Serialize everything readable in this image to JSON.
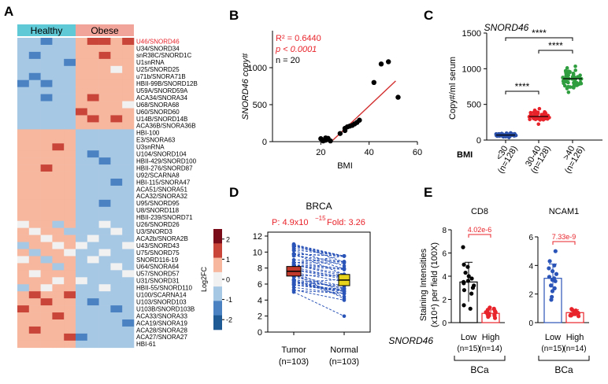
{
  "panel_letters": {
    "a": "A",
    "b": "B",
    "c": "C",
    "d": "D",
    "e": "E"
  },
  "colors": {
    "healthy_bar": "#5fc9d6",
    "obese_bar": "#f0a49a",
    "highlight": "#e8232a",
    "heat_scale": [
      "#1f5a95",
      "#4a82c2",
      "#a6c8e4",
      "#f1f1f1",
      "#f6b79e",
      "#c9453a",
      "#7a0c1a"
    ],
    "tumor": "#c0392b",
    "normal": "#e6d31e",
    "dots_blue": "#2a4fa8",
    "dots_red": "#e8232a",
    "dots_green": "#2f9e3f"
  },
  "chart_data": [
    {
      "panel": "A",
      "type": "heatmap",
      "groups": [
        {
          "name": "Healthy",
          "n_columns": 5
        },
        {
          "name": "Obese",
          "n_columns": 5
        }
      ],
      "rows": [
        "U46/SNORD46",
        "U34/SNORD34",
        "snR38C/SNORD1C",
        "U1snRNA",
        "U25/SNORD25",
        "u71b/SNORA71B",
        "HBII-99B/SNORD12B",
        "U59A/SNORD59A",
        "ACA34/SNORA34",
        "U68/SNORA68",
        "U60/SNORD60",
        "U14B/SNORD14B",
        "ACA36B/SNORA36B",
        "HBI-100",
        "E3/SNORA63",
        "U3snRNA",
        "U104/SNORD104",
        "HBII-429/SNORD100",
        "HBII-276/SNORD87",
        "U92/SCARNA8",
        "HBI-115/SNORA47",
        "ACA51/SNORA51",
        "ACA32/SNORA32",
        "U95/SNORD95",
        "U8/SNORD118",
        "HBII-239/SNORD71",
        "U26/SNORD26",
        "U3/SNORD3",
        "ACA2b/SNORA2B",
        "U43/SNORD43",
        "U75/SNORD75",
        "SNORD116-19",
        "U64/SNORA64",
        "U57/SNORD57",
        "U31/SNORD31",
        "HBII-55/SNORD110",
        "U100/SCARNA14",
        "U103/SNORD103",
        "U103B/SNORD103B",
        "ACA33/SNORA33",
        "ACA19/SNORA19",
        "ACA28/SNORA28",
        "ACA27/SNORA27",
        "HBI-61"
      ],
      "highlight_row": "U46/SNORD46",
      "values": [
        [
          -1,
          -1,
          -2,
          -1,
          -1,
          1,
          2,
          2,
          1,
          2
        ],
        [
          -1,
          -1,
          -1,
          -1,
          -1,
          1,
          1,
          1,
          1,
          1
        ],
        [
          -1,
          -2,
          -1,
          -1,
          -1,
          1,
          1,
          2,
          1,
          1
        ],
        [
          -1,
          -1,
          -1,
          -1,
          -2,
          1,
          1,
          1,
          1,
          1
        ],
        [
          -1,
          -1,
          -1,
          -1,
          -1,
          1,
          1,
          1,
          0,
          1
        ],
        [
          -1,
          -2,
          -1,
          -1,
          -1,
          1,
          1,
          1,
          1,
          1
        ],
        [
          -2,
          -1,
          -2,
          -1,
          -1,
          1,
          1,
          1,
          1,
          1
        ],
        [
          -1,
          -1,
          -1,
          -1,
          -1,
          1,
          1,
          1,
          1,
          1
        ],
        [
          -1,
          -1,
          -2,
          -1,
          -1,
          1,
          2,
          1,
          1,
          1
        ],
        [
          -1,
          -1,
          -1,
          -1,
          -1,
          1,
          1,
          1,
          1,
          0
        ],
        [
          -1,
          -1,
          -1,
          -1,
          -1,
          2,
          1,
          1,
          1,
          1
        ],
        [
          -1,
          -1,
          -1,
          -1,
          -1,
          1,
          2,
          1,
          2,
          1
        ],
        [
          -1,
          -1,
          -1,
          -1,
          -1,
          1,
          1,
          1,
          1,
          1
        ],
        [
          1,
          1,
          1,
          1,
          1,
          -1,
          -1,
          -1,
          -1,
          -1
        ],
        [
          1,
          1,
          1,
          1,
          1,
          -1,
          -1,
          -1,
          -1,
          -1
        ],
        [
          1,
          1,
          1,
          2,
          1,
          -1,
          -1,
          -1,
          -1,
          -1
        ],
        [
          1,
          1,
          1,
          1,
          1,
          -1,
          -2,
          -1,
          -1,
          -1
        ],
        [
          1,
          1,
          1,
          1,
          1,
          -1,
          -1,
          -2,
          -1,
          -1
        ],
        [
          1,
          1,
          2,
          1,
          1,
          -1,
          -1,
          -1,
          -1,
          -1
        ],
        [
          1,
          1,
          1,
          1,
          1,
          -1,
          -1,
          -1,
          -1,
          -1
        ],
        [
          1,
          1,
          1,
          1,
          1,
          -1,
          -1,
          -1,
          -2,
          -1
        ],
        [
          1,
          1,
          1,
          1,
          1,
          -1,
          -1,
          -1,
          -1,
          -1
        ],
        [
          1,
          1,
          1,
          1,
          1,
          -1,
          -1,
          -1,
          -1,
          -1
        ],
        [
          1,
          1,
          1,
          1,
          1,
          -1,
          -1,
          -2,
          -1,
          -1
        ],
        [
          1,
          1,
          1,
          1,
          1,
          -1,
          -1,
          -1,
          -1,
          -1
        ],
        [
          1,
          1,
          1,
          1,
          1,
          -1,
          -1,
          -1,
          -1,
          -1
        ],
        [
          0,
          1,
          1,
          -1,
          1,
          -1,
          -1,
          0,
          -1,
          -1
        ],
        [
          1,
          0,
          1,
          1,
          -1,
          -1,
          -1,
          -1,
          0,
          -1
        ],
        [
          1,
          1,
          0,
          1,
          1,
          -1,
          0,
          -1,
          -1,
          -1
        ],
        [
          -1,
          1,
          1,
          0,
          1,
          0,
          -1,
          -1,
          -1,
          0
        ],
        [
          1,
          -1,
          1,
          1,
          0,
          -1,
          -1,
          0,
          -1,
          -1
        ],
        [
          0,
          1,
          -1,
          1,
          1,
          -1,
          0,
          -1,
          -1,
          -1
        ],
        [
          1,
          1,
          1,
          -1,
          1,
          -1,
          -1,
          -1,
          0,
          -1
        ],
        [
          1,
          0,
          1,
          1,
          1,
          -1,
          -1,
          -1,
          -1,
          0
        ],
        [
          1,
          1,
          1,
          0,
          1,
          0,
          -1,
          -1,
          -1,
          -1
        ],
        [
          -1,
          1,
          0,
          1,
          1,
          -1,
          -1,
          0,
          -1,
          -1
        ],
        [
          1,
          2,
          1,
          1,
          2,
          -1,
          -1,
          -1,
          -1,
          -1
        ],
        [
          1,
          1,
          2,
          1,
          1,
          -1,
          -2,
          -1,
          -1,
          -1
        ],
        [
          2,
          1,
          1,
          1,
          1,
          -1,
          -1,
          -1,
          -2,
          -1
        ],
        [
          1,
          1,
          1,
          2,
          1,
          -1,
          -1,
          -1,
          -1,
          -1
        ],
        [
          1,
          1,
          1,
          1,
          1,
          -1,
          -1,
          -1,
          -1,
          -2
        ],
        [
          1,
          2,
          1,
          1,
          1,
          -1,
          -1,
          -1,
          -1,
          -1
        ],
        [
          1,
          1,
          1,
          1,
          2,
          -2,
          -1,
          -1,
          -1,
          -1
        ],
        [
          1,
          1,
          1,
          1,
          1,
          -1,
          -1,
          -1,
          -1,
          -1
        ]
      ],
      "colorbar": {
        "label": "Log2FC",
        "ticks": [
          "2",
          "1",
          "0",
          "-1",
          "-2"
        ],
        "range": [
          -2.5,
          2.5
        ]
      }
    },
    {
      "panel": "B",
      "type": "scatter",
      "x": [
        20,
        21,
        22,
        23,
        22,
        24,
        23,
        28,
        30,
        31,
        32,
        30,
        33,
        34,
        35,
        36,
        42,
        45,
        48,
        52
      ],
      "y": [
        40,
        10,
        50,
        30,
        20,
        10,
        45,
        110,
        150,
        200,
        210,
        180,
        220,
        240,
        260,
        290,
        800,
        1050,
        1080,
        600
      ],
      "fit_line": {
        "x": [
          25,
          51
        ],
        "y": [
          20,
          820
        ]
      },
      "xlabel": "BMI",
      "ylabel": "SNORD46 copy#",
      "xticks": [
        "20",
        "40",
        "60"
      ],
      "yticks": [
        "0",
        "500",
        "1000"
      ],
      "xlim": [
        0,
        60
      ],
      "ylim": [
        0,
        1500
      ],
      "stats": {
        "r2": "R² = 0.6440",
        "p": "p < 0.0001",
        "n": "n = 20"
      }
    },
    {
      "panel": "C",
      "type": "scatter",
      "title": "SNORD46",
      "categories": [
        "<30",
        "30-40",
        ">40"
      ],
      "group_n": [
        "(n=128)",
        "(n=128)",
        "(n=126)"
      ],
      "means": [
        70,
        330,
        860
      ],
      "spreads": [
        40,
        110,
        220
      ],
      "ylabel": "Copy#/ml serum",
      "yticks": [
        "0",
        "500",
        "1000",
        "1500"
      ],
      "ylim": [
        0,
        1500
      ],
      "xlabel": "BMI",
      "sig_labels": [
        "****",
        "****",
        "****"
      ]
    },
    {
      "panel": "D",
      "type": "line",
      "title": "BRCA",
      "stat_text": {
        "p_prefix": "P: 4.9x10",
        "p_exp": "−15",
        "fold": "Fold: 3.26"
      },
      "categories": [
        "Tumor",
        "Normal"
      ],
      "group_n": [
        "(n=103)",
        "(n=103)"
      ],
      "yticks": [
        "0",
        "2",
        "4",
        "6",
        "8",
        "10",
        "12"
      ],
      "ylim": [
        0,
        12
      ],
      "box_medians": [
        7.6,
        6.5
      ],
      "tumor_range": [
        5.0,
        11.0
      ],
      "normal_range": [
        0.5,
        9.5
      ]
    },
    {
      "panel": "E",
      "type": "bar",
      "ylabel_main": "Staining Intensities",
      "ylabel_sub": "(x10⁴) per field (100X)",
      "row_label": "SNORD46",
      "subplots": [
        {
          "title": "CD8",
          "categories": [
            "Low",
            "High"
          ],
          "group_n": [
            "(n=15)",
            "(n=14)"
          ],
          "values": [
            3.5,
            0.8
          ],
          "errors": [
            1.7,
            0.3
          ],
          "yticks": [
            "0",
            "2",
            "4",
            "6",
            "8"
          ],
          "ylim": [
            0,
            8
          ],
          "pvalue": "4.02e-6",
          "group": "BCa",
          "points_low": [
            6.5,
            5.0,
            4.8,
            4.3,
            4.0,
            3.8,
            3.6,
            3.5,
            3.4,
            3.2,
            3.0,
            2.8,
            2.5,
            1.5,
            1.2
          ],
          "points_high": [
            1.3,
            1.2,
            1.1,
            1.0,
            0.9,
            0.9,
            0.8,
            0.8,
            0.7,
            0.7,
            0.6,
            0.6,
            0.5,
            0.4
          ]
        },
        {
          "title": "NCAM1",
          "categories": [
            "Low",
            "High"
          ],
          "group_n": [
            "(n=15)",
            "(n=14)"
          ],
          "values": [
            3.1,
            0.7
          ],
          "errors": [
            1.0,
            0.2
          ],
          "yticks": [
            "0",
            "2",
            "4",
            "6"
          ],
          "ylim": [
            0,
            6
          ],
          "pvalue": "7.33e-9",
          "group": "BCa",
          "points_low": [
            5.0,
            4.3,
            4.0,
            3.8,
            3.6,
            3.4,
            3.2,
            3.1,
            3.0,
            2.9,
            2.6,
            2.4,
            2.2,
            1.8,
            1.6
          ],
          "points_high": [
            0.95,
            0.9,
            0.85,
            0.8,
            0.75,
            0.7,
            0.7,
            0.65,
            0.6,
            0.6,
            0.55,
            0.5,
            0.5,
            0.45
          ]
        }
      ]
    }
  ]
}
